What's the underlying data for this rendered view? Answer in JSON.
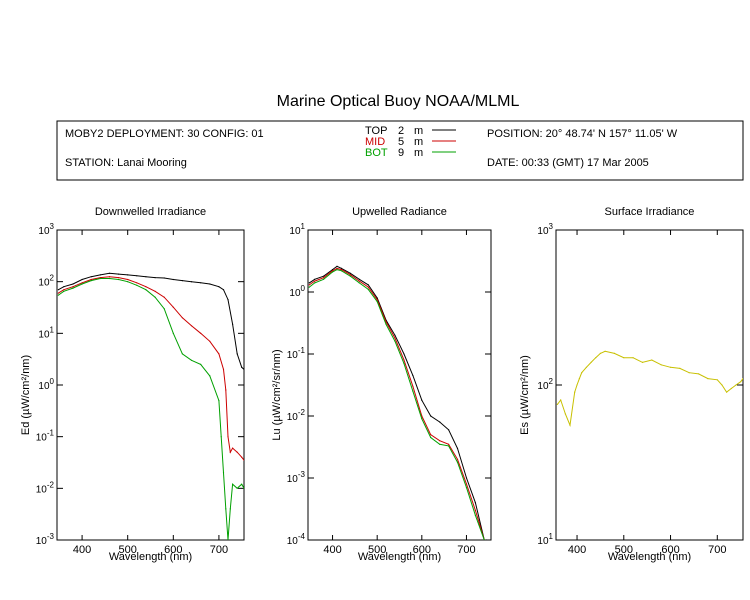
{
  "title": "Marine Optical Buoy NOAA/MLML",
  "header": {
    "deployment": "MOBY2 DEPLOYMENT: 30 CONFIG: 01",
    "station": "STATION: Lanai Mooring",
    "position": "POSITION: 20° 48.74' N   157° 11.05' W",
    "date": "DATE: 00:33 (GMT) 17 Mar 2005",
    "legend": [
      {
        "name": "TOP",
        "depth": "2",
        "unit": "m",
        "color": "#000000"
      },
      {
        "name": "MID",
        "depth": "5",
        "unit": "m",
        "color": "#cc0000"
      },
      {
        "name": "BOT",
        "depth": "9",
        "unit": "m",
        "color": "#00a000"
      }
    ]
  },
  "chart_data": [
    {
      "type": "line",
      "title": "Downwelled Irradiance",
      "xlabel": "Wavelength (nm)",
      "ylabel": "Ed  (µW/cm²/nm)",
      "xlim": [
        345,
        755
      ],
      "ylim": [
        0.001,
        1000
      ],
      "yscale": "log",
      "xticks": [
        "400",
        "500",
        "600",
        "700"
      ],
      "yticks": [
        "10^-3",
        "10^-2",
        "10^-1",
        "10^0",
        "10^1",
        "10^2",
        "10^3"
      ],
      "series": [
        {
          "name": "TOP",
          "color": "#000000",
          "x": [
            348,
            360,
            380,
            400,
            420,
            440,
            460,
            480,
            500,
            520,
            540,
            560,
            580,
            600,
            620,
            640,
            660,
            680,
            700,
            710,
            720,
            730,
            740,
            750,
            755
          ],
          "y": [
            70,
            80,
            90,
            110,
            125,
            135,
            145,
            140,
            135,
            130,
            125,
            120,
            118,
            110,
            105,
            100,
            95,
            90,
            80,
            70,
            45,
            15,
            4,
            2.2,
            2.0
          ]
        },
        {
          "name": "MID",
          "color": "#cc0000",
          "x": [
            348,
            360,
            380,
            400,
            420,
            440,
            460,
            480,
            500,
            520,
            540,
            560,
            580,
            600,
            620,
            640,
            660,
            680,
            700,
            710,
            715,
            720,
            725,
            730,
            740,
            750,
            755
          ],
          "y": [
            60,
            70,
            80,
            95,
            110,
            120,
            125,
            120,
            110,
            95,
            80,
            65,
            50,
            32,
            20,
            14,
            10,
            7,
            4,
            2,
            0.8,
            0.1,
            0.05,
            0.06,
            0.05,
            0.04,
            0.035
          ]
        },
        {
          "name": "BOT",
          "color": "#00a000",
          "x": [
            348,
            360,
            380,
            400,
            420,
            440,
            460,
            480,
            500,
            520,
            540,
            560,
            580,
            600,
            620,
            640,
            660,
            680,
            700,
            705,
            710,
            715,
            720,
            725,
            730,
            740,
            750,
            755
          ],
          "y": [
            55,
            65,
            75,
            90,
            105,
            115,
            115,
            110,
            100,
            85,
            70,
            50,
            30,
            10,
            4,
            3,
            2.5,
            1.5,
            0.5,
            0.1,
            0.02,
            0.004,
            0.001,
            0.004,
            0.012,
            0.01,
            0.012,
            0.01
          ]
        }
      ]
    },
    {
      "type": "line",
      "title": "Upwelled Radiance",
      "xlabel": "Wavelength (nm)",
      "ylabel": "Lu  (µW/cm²/sr/nm)",
      "xlim": [
        345,
        755
      ],
      "ylim": [
        0.0001,
        10
      ],
      "yscale": "log",
      "xticks": [
        "400",
        "500",
        "600",
        "700"
      ],
      "yticks": [
        "10^-4",
        "10^-3",
        "10^-2",
        "10^-1",
        "10^0",
        "10^1"
      ],
      "series": [
        {
          "name": "TOP",
          "color": "#000000",
          "x": [
            348,
            360,
            380,
            400,
            410,
            420,
            440,
            460,
            480,
            500,
            520,
            540,
            560,
            580,
            600,
            620,
            640,
            660,
            680,
            700,
            720,
            740,
            745
          ],
          "y": [
            1.4,
            1.6,
            1.8,
            2.3,
            2.6,
            2.4,
            2.0,
            1.6,
            1.3,
            0.8,
            0.35,
            0.2,
            0.1,
            0.045,
            0.018,
            0.01,
            0.008,
            0.006,
            0.003,
            0.001,
            0.0004,
            0.0001,
            0.0001
          ]
        },
        {
          "name": "MID",
          "color": "#cc0000",
          "x": [
            348,
            360,
            380,
            400,
            410,
            420,
            440,
            460,
            480,
            500,
            520,
            540,
            560,
            580,
            600,
            620,
            640,
            660,
            680,
            700,
            720,
            740
          ],
          "y": [
            1.3,
            1.5,
            1.7,
            2.2,
            2.4,
            2.3,
            1.9,
            1.5,
            1.2,
            0.75,
            0.33,
            0.18,
            0.08,
            0.03,
            0.01,
            0.005,
            0.004,
            0.0035,
            0.002,
            0.0008,
            0.0003,
            0.0001
          ]
        },
        {
          "name": "BOT",
          "color": "#00a000",
          "x": [
            348,
            360,
            380,
            400,
            410,
            420,
            440,
            460,
            480,
            500,
            520,
            540,
            560,
            580,
            600,
            620,
            640,
            660,
            680,
            700,
            720,
            740
          ],
          "y": [
            1.2,
            1.4,
            1.6,
            2.1,
            2.3,
            2.2,
            1.8,
            1.4,
            1.1,
            0.7,
            0.3,
            0.16,
            0.07,
            0.025,
            0.009,
            0.0045,
            0.0035,
            0.0033,
            0.0018,
            0.0007,
            0.00025,
            0.0001
          ]
        }
      ]
    },
    {
      "type": "line",
      "title": "Surface Irradiance",
      "xlabel": "Wavelength (nm)",
      "ylabel": "Es  (µW/cm²/nm)",
      "xlim": [
        355,
        755
      ],
      "ylim": [
        10,
        1000
      ],
      "yscale": "log",
      "xticks": [
        "400",
        "500",
        "600",
        "700"
      ],
      "yticks": [
        "10^1",
        "10^2",
        "10^3"
      ],
      "series": [
        {
          "name": "Es",
          "color": "#c8c000",
          "x": [
            358,
            365,
            375,
            385,
            395,
            400,
            405,
            410,
            420,
            430,
            440,
            450,
            460,
            480,
            500,
            520,
            540,
            560,
            580,
            600,
            620,
            640,
            660,
            680,
            700,
            710,
            720,
            730,
            740,
            750,
            755
          ],
          "y": [
            75,
            80,
            65,
            55,
            90,
            100,
            110,
            120,
            130,
            140,
            150,
            160,
            165,
            160,
            150,
            150,
            140,
            145,
            135,
            130,
            128,
            120,
            118,
            110,
            108,
            100,
            90,
            95,
            100,
            105,
            110
          ]
        }
      ]
    }
  ]
}
